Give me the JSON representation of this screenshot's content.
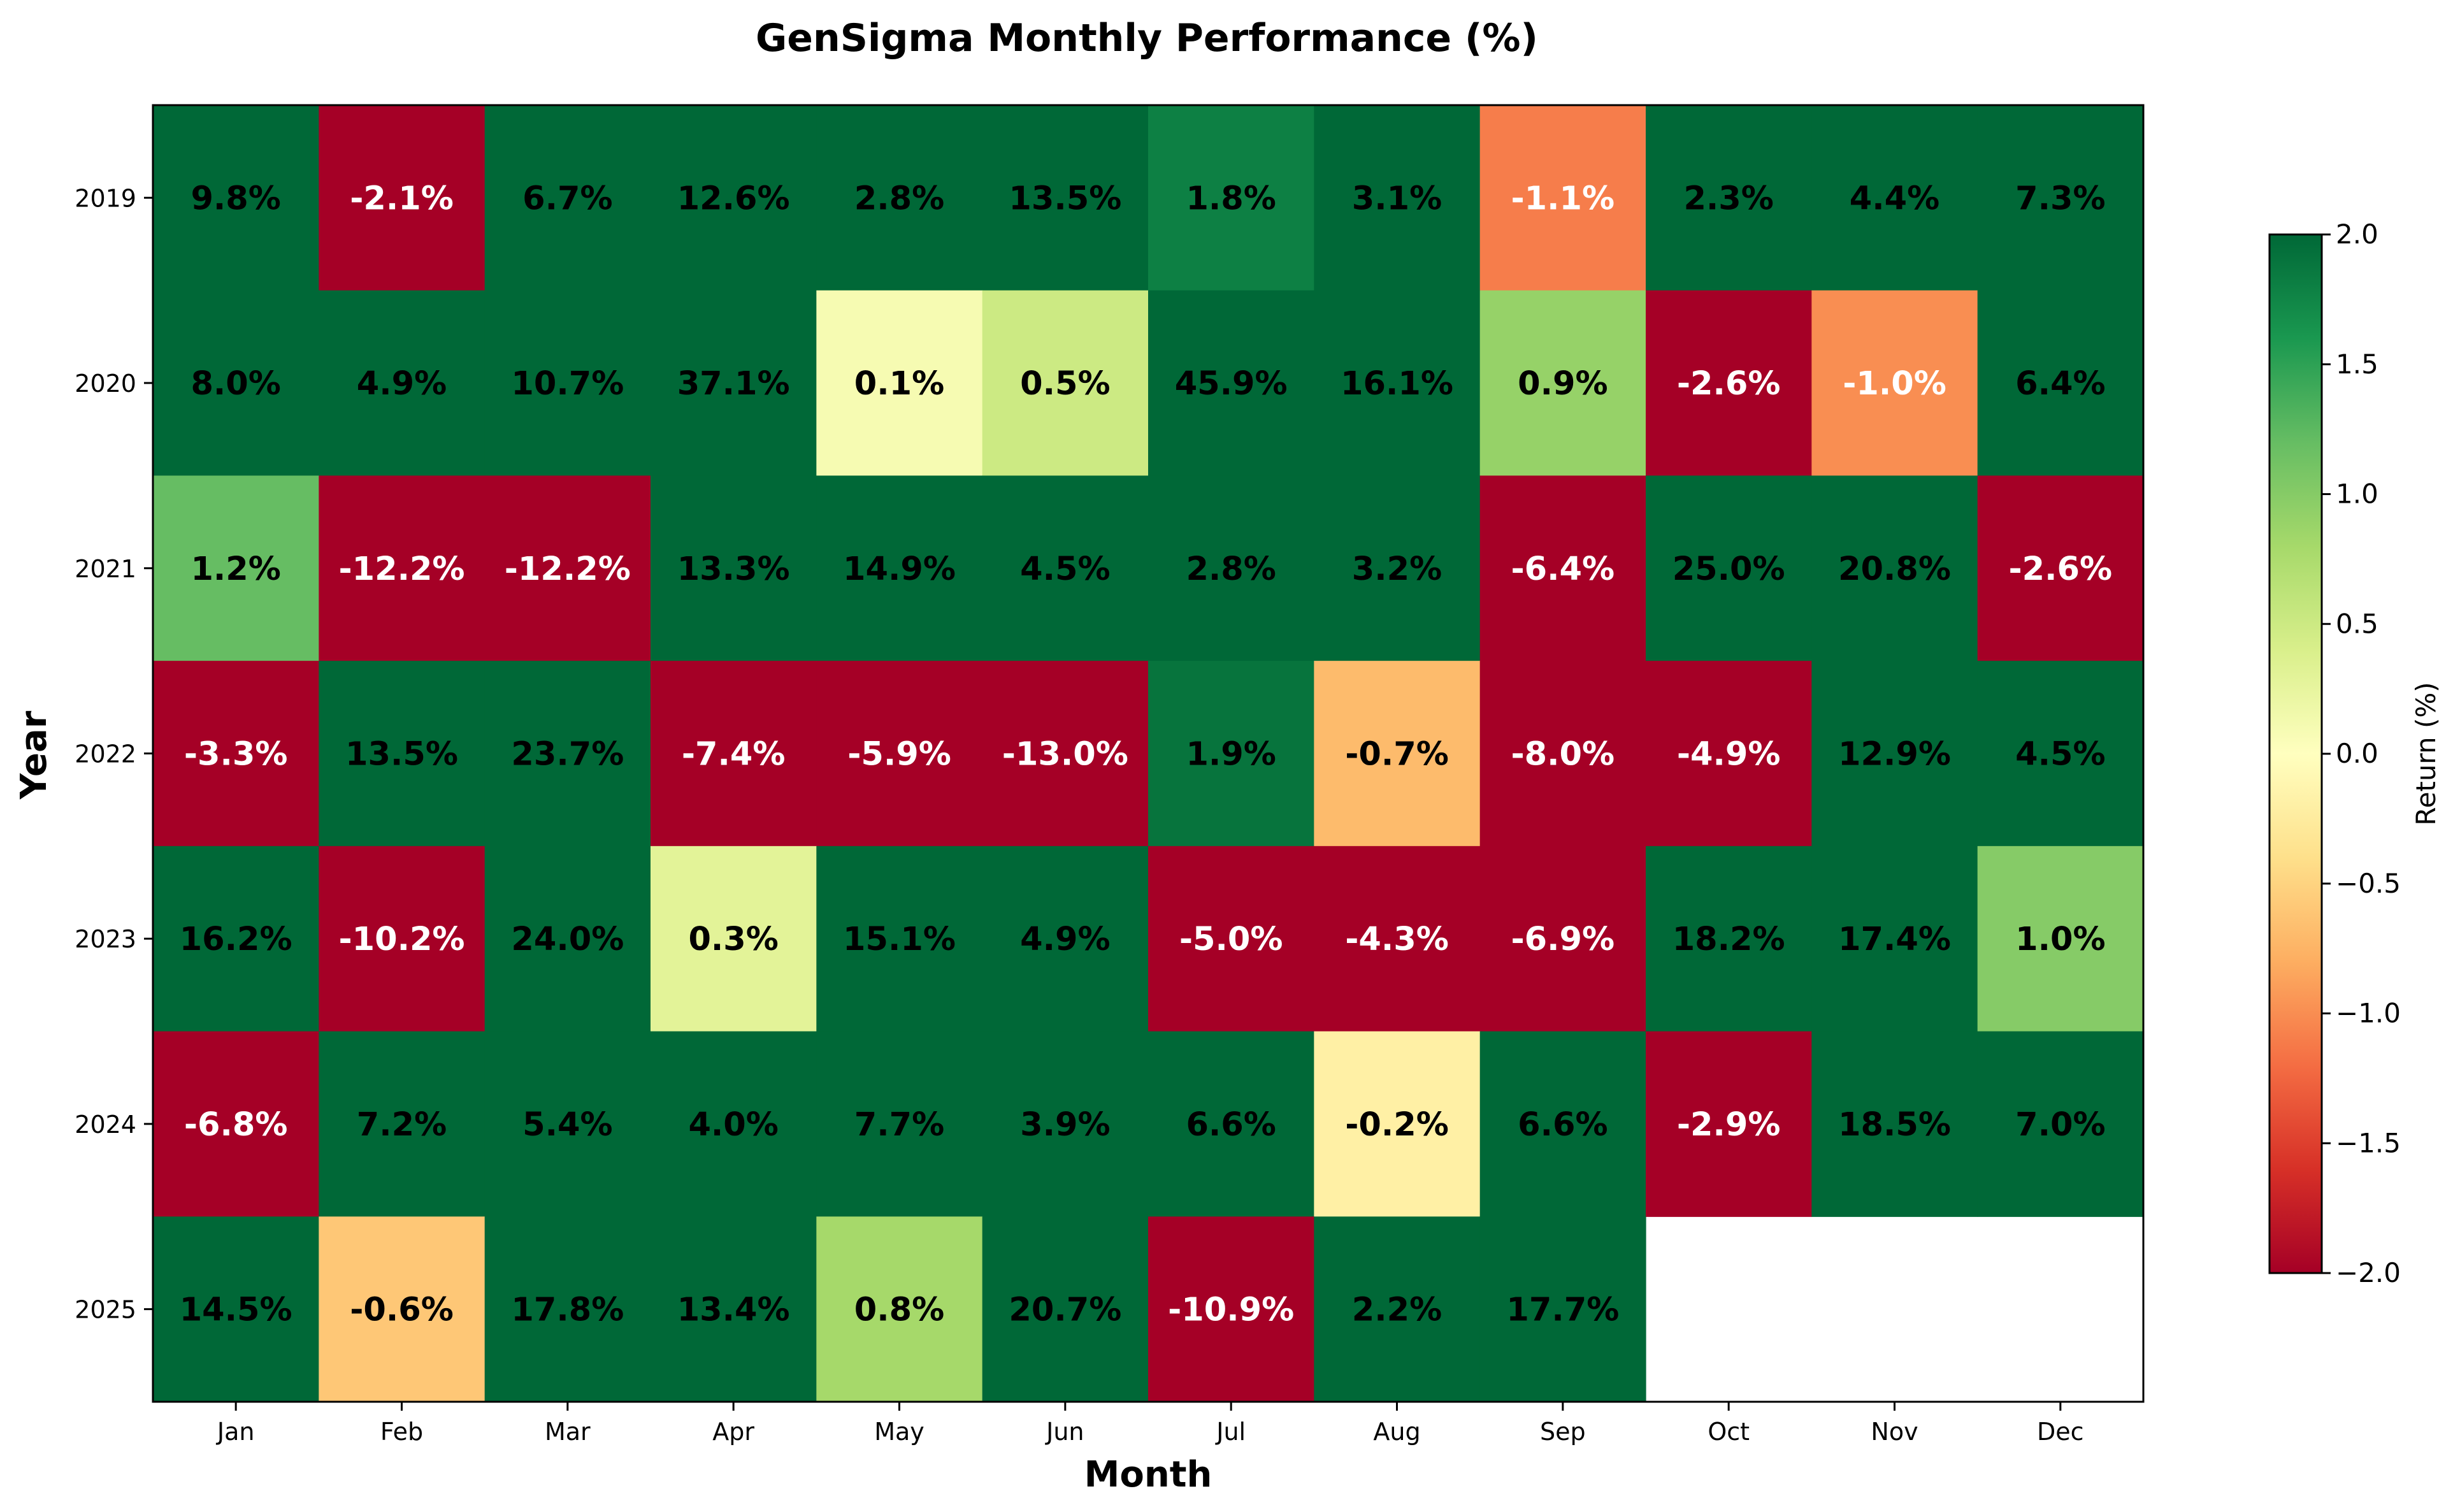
{
  "chart_data": {
    "type": "heatmap",
    "title": "GenSigma Monthly Performance (%)",
    "xlabel": "Month",
    "ylabel": "Year",
    "x_categories": [
      "Jan",
      "Feb",
      "Mar",
      "Apr",
      "May",
      "Jun",
      "Jul",
      "Aug",
      "Sep",
      "Oct",
      "Nov",
      "Dec"
    ],
    "y_categories": [
      "2019",
      "2020",
      "2021",
      "2022",
      "2023",
      "2024",
      "2025"
    ],
    "values": [
      [
        9.8,
        -2.1,
        6.7,
        12.6,
        2.8,
        13.5,
        1.8,
        3.1,
        -1.1,
        2.3,
        4.4,
        7.3
      ],
      [
        8.0,
        4.9,
        10.7,
        37.1,
        0.1,
        0.5,
        45.9,
        16.1,
        0.9,
        -2.6,
        -1.0,
        6.4
      ],
      [
        1.2,
        -12.2,
        -12.2,
        13.3,
        14.9,
        4.5,
        2.8,
        3.2,
        -6.4,
        25.0,
        20.8,
        -2.6
      ],
      [
        -3.3,
        13.5,
        23.7,
        -7.4,
        -5.9,
        -13.0,
        1.9,
        -0.7,
        -8.0,
        -4.9,
        12.9,
        4.5
      ],
      [
        16.2,
        -10.2,
        24.0,
        0.3,
        15.1,
        4.9,
        -5.0,
        -4.3,
        -6.9,
        18.2,
        17.4,
        1.0
      ],
      [
        -6.8,
        7.2,
        5.4,
        4.0,
        7.7,
        3.9,
        6.6,
        -0.2,
        6.6,
        -2.9,
        18.5,
        7.0
      ],
      [
        14.5,
        -0.6,
        17.8,
        13.4,
        0.8,
        20.7,
        -10.9,
        2.2,
        17.7,
        null,
        null,
        null
      ]
    ],
    "value_suffix": "%",
    "colormap": "RdYlGn",
    "color_range": [
      -2.0,
      2.0
    ],
    "colorbar": {
      "label": "Return (%)",
      "ticks": [
        "2.0",
        "1.5",
        "1.0",
        "0.5",
        "0.0",
        "−0.5",
        "−1.0",
        "−1.5",
        "−2.0"
      ]
    },
    "grid": false,
    "legend": "colorbar-right"
  }
}
